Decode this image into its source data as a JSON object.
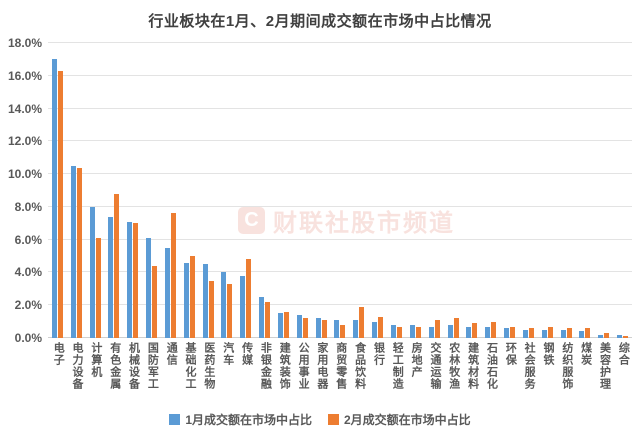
{
  "title": "行业板块在1月、2月期间成交额在市场中占比情况",
  "watermark": {
    "logo_letter": "C",
    "text": "财联社股市频道"
  },
  "colors": {
    "series1": "#5B9BD5",
    "series2": "#ED7D31",
    "grid": "#E3E3E3",
    "axis_text": "#595959",
    "title_text": "#404040",
    "watermark": "#D94F38"
  },
  "chart_data": {
    "type": "bar",
    "title": "行业板块在1月、2月期间成交额在市场中占比情况",
    "xlabel": "",
    "ylabel": "",
    "ylim": [
      0,
      18
    ],
    "ytick_step": 2,
    "ytick_labels": [
      "0.0%",
      "2.0%",
      "4.0%",
      "6.0%",
      "8.0%",
      "10.0%",
      "12.0%",
      "14.0%",
      "16.0%",
      "18.0%"
    ],
    "grid": true,
    "legend_position": "bottom",
    "categories": [
      "电子",
      "电力设备",
      "计算机",
      "有色金属",
      "机械设备",
      "国防军工",
      "通信",
      "基础化工",
      "医药生物",
      "汽车",
      "传媒",
      "非银金融",
      "建筑装饰",
      "公用事业",
      "家用电器",
      "商贸零售",
      "食品饮料",
      "银行",
      "轻工制造",
      "房地产",
      "交通运输",
      "农林牧渔",
      "建筑材料",
      "石油石化",
      "环保",
      "社会服务",
      "钢铁",
      "纺织服饰",
      "煤炭",
      "美容护理",
      "综合"
    ],
    "series": [
      {
        "name": "1月成交额在市场中占比",
        "color": "#5B9BD5",
        "values": [
          17.0,
          10.5,
          8.0,
          7.4,
          7.1,
          6.1,
          5.5,
          4.6,
          4.5,
          4.0,
          3.8,
          2.5,
          1.5,
          1.4,
          1.2,
          1.1,
          1.1,
          1.0,
          0.8,
          0.8,
          0.7,
          0.8,
          0.7,
          0.7,
          0.6,
          0.5,
          0.5,
          0.5,
          0.4,
          0.2,
          0.2
        ]
      },
      {
        "name": "2月成交额在市场中占比",
        "color": "#ED7D31",
        "values": [
          16.3,
          10.4,
          6.1,
          8.8,
          7.0,
          4.4,
          7.6,
          5.0,
          3.5,
          3.3,
          4.8,
          2.2,
          1.6,
          1.2,
          1.1,
          0.8,
          1.9,
          1.3,
          0.7,
          0.7,
          1.1,
          1.2,
          0.9,
          1.0,
          0.7,
          0.6,
          0.7,
          0.6,
          0.6,
          0.3,
          0.15
        ]
      }
    ]
  }
}
